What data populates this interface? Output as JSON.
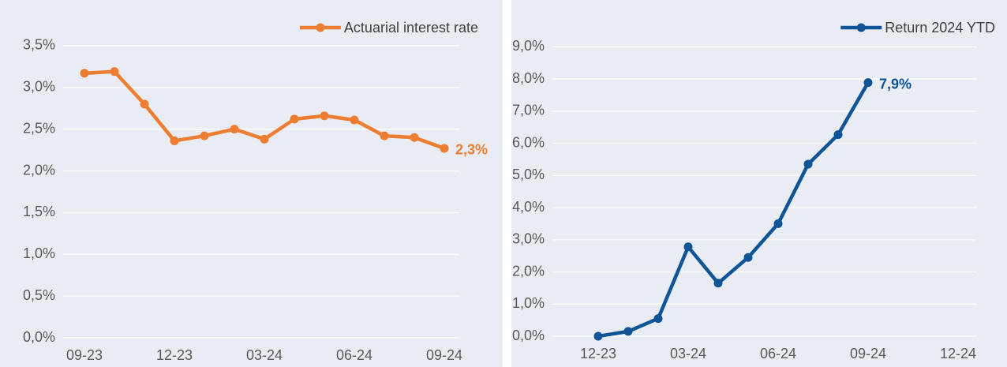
{
  "chart_data": [
    {
      "type": "line",
      "categories": [
        "09-23",
        null,
        null,
        "12-23",
        null,
        null,
        "03-24",
        null,
        null,
        "06-24",
        null,
        null,
        "09-24"
      ],
      "series": [
        {
          "name": "Actuarial interest rate",
          "color": "#ed7d31",
          "values": [
            3.17,
            3.19,
            2.8,
            2.36,
            2.42,
            2.5,
            2.38,
            2.62,
            2.66,
            2.61,
            2.42,
            2.4,
            2.27
          ],
          "value_labels": [
            null,
            null,
            null,
            null,
            null,
            null,
            null,
            null,
            null,
            null,
            null,
            null,
            "2,3%"
          ]
        }
      ],
      "ylim": [
        0,
        4
      ],
      "yticks": [
        {
          "value": 0,
          "label": "0,0%"
        },
        {
          "value": 0.5,
          "label": "0,5%"
        },
        {
          "value": 1,
          "label": "1,0%"
        },
        {
          "value": 1.5,
          "label": "1,5%"
        },
        {
          "value": 2,
          "label": "2,0%"
        },
        {
          "value": 2.5,
          "label": "2,5%"
        },
        {
          "value": 3,
          "label": "3,0%"
        },
        {
          "value": 3.5,
          "label": "3,5%"
        }
      ],
      "grid": true,
      "legend": "upper right"
    },
    {
      "type": "line",
      "categories": [
        "12-23",
        null,
        null,
        "03-24",
        null,
        null,
        "06-24",
        null,
        null,
        "09-24",
        null,
        null,
        "12-24"
      ],
      "series": [
        {
          "name": "Return 2024 YTD",
          "color": "#0f5496",
          "values": [
            0.0,
            0.15,
            0.55,
            2.78,
            1.65,
            2.45,
            3.5,
            5.35,
            6.27,
            7.89,
            null,
            null,
            null
          ],
          "value_labels": [
            null,
            null,
            null,
            null,
            null,
            null,
            null,
            null,
            null,
            "7,9%",
            null,
            null,
            null
          ]
        }
      ],
      "ylim": [
        0,
        9.5
      ],
      "yticks": [
        {
          "value": 0,
          "label": "0,0%"
        },
        {
          "value": 1,
          "label": "1,0%"
        },
        {
          "value": 2,
          "label": "2,0%"
        },
        {
          "value": 3,
          "label": "3,0%"
        },
        {
          "value": 4,
          "label": "4,0%"
        },
        {
          "value": 5,
          "label": "5,0%"
        },
        {
          "value": 6,
          "label": "6,0%"
        },
        {
          "value": 7,
          "label": "7,0%"
        },
        {
          "value": 8,
          "label": "8,0%"
        },
        {
          "value": 9,
          "label": "9,0%"
        }
      ],
      "grid": true,
      "legend": "upper right"
    }
  ]
}
